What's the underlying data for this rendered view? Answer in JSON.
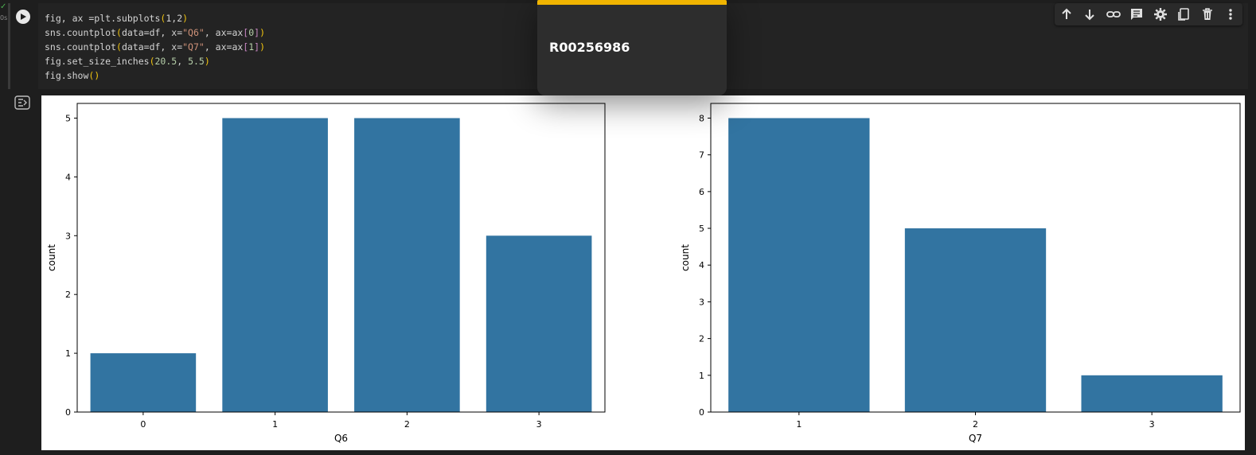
{
  "cell": {
    "exec_mark": "✓",
    "exec_time": "0s",
    "code_lines": [
      [
        [
          "fig, ax =plt.subplots",
          ""
        ],
        [
          "(",
          "paren"
        ],
        [
          "1,2",
          ""
        ],
        [
          ")",
          "paren"
        ]
      ],
      [
        [
          "sns.countplot",
          ""
        ],
        [
          "(",
          "paren"
        ],
        [
          "data=df, x=",
          ""
        ],
        [
          "\"Q6\"",
          "str"
        ],
        [
          ", ax=ax",
          ""
        ],
        [
          "[",
          "brack"
        ],
        [
          "0",
          "num"
        ],
        [
          "]",
          "brack"
        ],
        [
          ")",
          "paren"
        ]
      ],
      [
        [
          "sns.countplot",
          ""
        ],
        [
          "(",
          "paren"
        ],
        [
          "data=df, x=",
          ""
        ],
        [
          "\"Q7\"",
          "str"
        ],
        [
          ", ax=ax",
          ""
        ],
        [
          "[",
          "brack"
        ],
        [
          "1",
          "num"
        ],
        [
          "]",
          "brack"
        ],
        [
          ")",
          "paren"
        ]
      ],
      [
        [
          "fig.set_size_inches",
          ""
        ],
        [
          "(",
          "paren"
        ],
        [
          "20.5",
          "num"
        ],
        [
          ", ",
          ""
        ],
        [
          "5.5",
          "num"
        ],
        [
          ")",
          "paren"
        ]
      ],
      [
        [
          "fig.show",
          ""
        ],
        [
          "()",
          "paren"
        ]
      ]
    ]
  },
  "toolbar": {
    "icons": [
      "arrow-up-icon",
      "arrow-down-icon",
      "link-icon",
      "comment-icon",
      "gear-icon",
      "mirror-cell-icon",
      "trash-icon",
      "more-vert-icon"
    ]
  },
  "tooltip": {
    "text": "R00256986",
    "accent": "#f0b400"
  },
  "colors": {
    "bar": "#3274a1",
    "background": "#1e1e1e"
  },
  "chart_data": [
    {
      "type": "bar",
      "categories": [
        "0",
        "1",
        "2",
        "3"
      ],
      "values": [
        1,
        5,
        5,
        3
      ],
      "xlabel": "Q6",
      "ylabel": "count",
      "ylim": [
        0,
        5.25
      ],
      "yticks": [
        0,
        1,
        2,
        3,
        4,
        5
      ]
    },
    {
      "type": "bar",
      "categories": [
        "1",
        "2",
        "3"
      ],
      "values": [
        8,
        5,
        1
      ],
      "xlabel": "Q7",
      "ylabel": "count",
      "ylim": [
        0,
        8.4
      ],
      "yticks": [
        0,
        1,
        2,
        3,
        4,
        5,
        6,
        7,
        8
      ]
    }
  ]
}
